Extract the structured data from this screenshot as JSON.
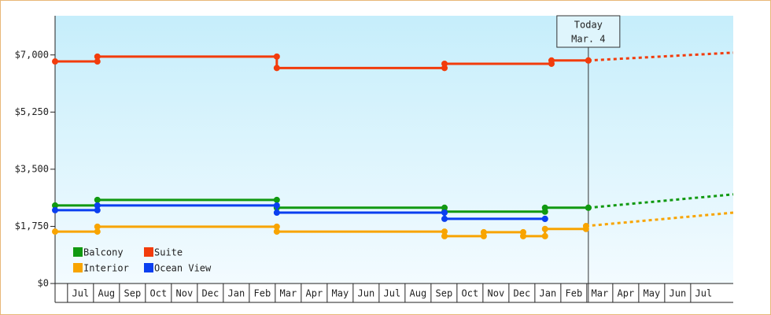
{
  "chart_data": {
    "type": "step-line",
    "xlim": [
      -0.48,
      25.64
    ],
    "ylim": [
      0,
      8200
    ],
    "yticks": [
      {
        "value": 0,
        "label": "$0"
      },
      {
        "value": 1750,
        "label": "$1,750"
      },
      {
        "value": 3500,
        "label": "$3,500"
      },
      {
        "value": 5250,
        "label": "$5,250"
      },
      {
        "value": 7000,
        "label": "$7,000"
      }
    ],
    "xticks": [
      {
        "value": 0.5,
        "label": "Jul"
      },
      {
        "value": 1.5,
        "label": "Aug"
      },
      {
        "value": 2.5,
        "label": "Sep"
      },
      {
        "value": 3.5,
        "label": "Oct"
      },
      {
        "value": 4.5,
        "label": "Nov"
      },
      {
        "value": 5.5,
        "label": "Dec"
      },
      {
        "value": 6.5,
        "label": "Jan"
      },
      {
        "value": 7.5,
        "label": "Feb"
      },
      {
        "value": 8.5,
        "label": "Mar"
      },
      {
        "value": 9.5,
        "label": "Apr"
      },
      {
        "value": 10.5,
        "label": "May"
      },
      {
        "value": 11.5,
        "label": "Jun"
      },
      {
        "value": 12.5,
        "label": "Jul"
      },
      {
        "value": 13.5,
        "label": "Aug"
      },
      {
        "value": 14.5,
        "label": "Sep"
      },
      {
        "value": 15.5,
        "label": "Oct"
      },
      {
        "value": 16.5,
        "label": "Nov"
      },
      {
        "value": 17.5,
        "label": "Dec"
      },
      {
        "value": 18.5,
        "label": "Jan"
      },
      {
        "value": 19.5,
        "label": "Feb"
      },
      {
        "value": 20.5,
        "label": "Mar"
      },
      {
        "value": 21.5,
        "label": "Apr"
      },
      {
        "value": 22.5,
        "label": "May"
      },
      {
        "value": 23.5,
        "label": "Jun"
      },
      {
        "value": 24.5,
        "label": "Jul"
      }
    ],
    "today": {
      "x": 20.06,
      "label": [
        "Today",
        "Mar. 4"
      ]
    },
    "series": [
      {
        "name": "Balcony",
        "color": "#119911",
        "x": [
          -0.48,
          1.15,
          8.06,
          14.52,
          18.39,
          20.06
        ],
        "values": [
          2390,
          2560,
          2320,
          2200,
          2320,
          2320
        ],
        "forecast": {
          "x": 25.64,
          "value": 2730
        }
      },
      {
        "name": "Suite",
        "color": "#f23c0c",
        "x": [
          -0.48,
          1.15,
          8.06,
          14.52,
          18.64,
          20.06
        ],
        "values": [
          6800,
          6950,
          6600,
          6730,
          6830,
          6830
        ],
        "forecast": {
          "x": 25.64,
          "value": 7070
        }
      },
      {
        "name": "Interior",
        "color": "#f8a400",
        "x": [
          -0.48,
          1.15,
          8.06,
          14.52,
          16.03,
          17.55,
          18.39,
          19.97
        ],
        "values": [
          1590,
          1740,
          1590,
          1450,
          1570,
          1450,
          1670,
          1760
        ],
        "forecast": {
          "x": 25.64,
          "value": 2170
        }
      },
      {
        "name": "Ocean View",
        "color": "#0a3ff0",
        "x": [
          -0.48,
          1.15,
          8.06,
          14.52,
          18.39
        ],
        "values": [
          2245,
          2390,
          2170,
          1980,
          1980
        ]
      }
    ]
  }
}
